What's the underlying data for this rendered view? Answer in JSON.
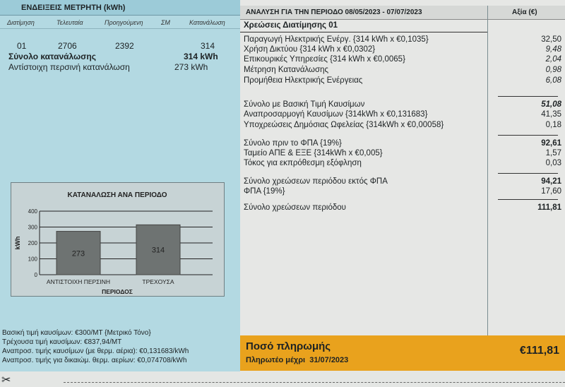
{
  "meter": {
    "title": "ΕΝΔΕΙΞΕΙΣ ΜΕΤΡΗΤΗ (kWh)",
    "columns": [
      "Διατίμηση",
      "Τελευταία",
      "Προηγούμενη",
      "ΣΜ",
      "Κατανάλωση"
    ],
    "row": {
      "tariff": "01",
      "last": "2706",
      "previous": "2392",
      "sm": "",
      "consumption": "314"
    },
    "total_label": "Σύνολο κατανάλωσης",
    "total_value": "314 kWh",
    "last_year_label": "Αντίστοιχη περσινή κατανάλωση",
    "last_year_value": "273 kWh"
  },
  "analysis": {
    "title": "ΑΝΑΛΥΣΗ ΓΙΑ ΤΗΝ ΠΕΡΙΟΔΟ 08/05/2023 - 07/07/2023",
    "value_header": "Αξία (€)",
    "subtitle": "Χρεώσεις Διατίμησης 01",
    "rows": [
      {
        "label": "Παραγωγή Ηλεκτρικής Ενέργ. {314 kWh x €0,1035}",
        "value": "32,50"
      },
      {
        "label": "Χρήση Δικτύου {314 kWh x €0,0302}",
        "value": "9,48"
      },
      {
        "label": "Επικουρικές Υπηρεσίες {314 kWh x €0,0065}",
        "value": "2,04"
      },
      {
        "label": "Μέτρηση Κατανάλωσης",
        "value": "0,98"
      },
      {
        "label": "Προμήθεια Ηλεκτρικής Ενέργειας",
        "value": "6,08"
      },
      {
        "label": "Σύνολο με Βασική Τιμή Καυσίμων",
        "value": "51,08"
      },
      {
        "label": "Αναπροσαρμογή Καυσίμων {314kWh x €0,131683}",
        "value": "41,35"
      },
      {
        "label": "Υποχρεώσεις Δημόσιας Ωφελείας {314kWh x €0,00058}",
        "value": "0,18"
      },
      {
        "label": "Σύνολο πριν το ΦΠΑ {19%}",
        "value": "92,61"
      },
      {
        "label": "Ταμείο ΑΠΕ & ΕΞΕ {314kWh x €0,005}",
        "value": "1,57"
      },
      {
        "label": "Τόκος για εκπρόθεσμη εξόφληση",
        "value": "0,03"
      },
      {
        "label": "Σύνολο χρεώσεων περιόδου εκτός ΦΠΑ",
        "value": "94,21"
      },
      {
        "label": "ΦΠΑ {19%}",
        "value": "17,60"
      },
      {
        "label": "Σύνολο χρεώσεων περιόδου",
        "value": "111,81"
      }
    ]
  },
  "chart_data": {
    "type": "bar",
    "title": "ΚΑΤΑΝΑΛΩΣΗ ΑΝΑ ΠΕΡΙΟΔΟ",
    "xlabel": "ΠΕΡΙΟΔΟΣ",
    "ylabel": "kWh",
    "categories": [
      "ΑΝΤΙΣΤΟΙΧΗ ΠΕΡΣΙΝΗ",
      "ΤΡΕΧΟΥΣΑ"
    ],
    "values": [
      273,
      314
    ],
    "ylim": [
      0,
      400
    ],
    "yticks": [
      "0",
      "100",
      "200",
      "300",
      "400"
    ],
    "grid": true,
    "bar_color": "#6e7372"
  },
  "fuel": [
    "Βασική τιμή καυσίμων: €300/MT {Μετρικό Τόνο}",
    "Τρέχουσα τιμή καυσίμων: €837,94/MT",
    "Αναπροσ. τιμής καυσίμων (με θερμ. αέρια): €0,131683/kWh",
    "Αναπροσ. τιμής για δικαιώμ. θερμ. αερίων: €0,074708/kWh"
  ],
  "payment": {
    "title": "Ποσό πληρωμής",
    "due_label": "Πληρωτέο μέχρι",
    "due_date": "31/07/2023",
    "amount": "€111,81",
    "color": "#e9a21d"
  }
}
